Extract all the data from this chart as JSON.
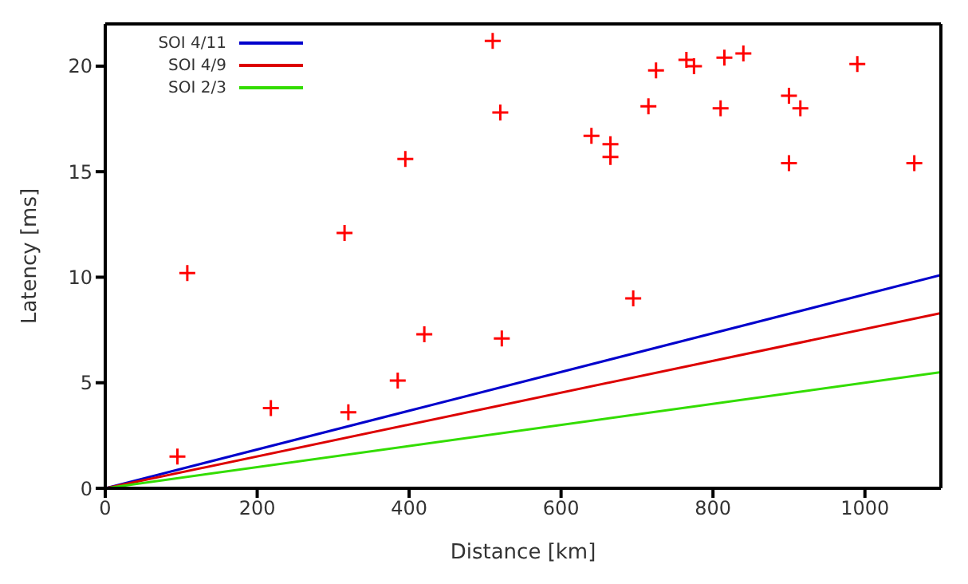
{
  "chart_data": {
    "type": "scatter",
    "xlabel": "Distance [km]",
    "ylabel": "Latency [ms]",
    "xlim": [
      0,
      1100
    ],
    "xticks": [
      0,
      200,
      400,
      600,
      800,
      1000
    ],
    "ylim": [
      0,
      22
    ],
    "yticks": [
      0,
      5,
      10,
      15,
      20
    ],
    "legend": "top left",
    "series": [
      {
        "marker": "cross",
        "color": "#ff0000",
        "x": [
          95,
          108,
          218,
          315,
          320,
          385,
          395,
          420,
          510,
          520,
          522,
          640,
          665,
          665,
          695,
          715,
          725,
          765,
          775,
          810,
          815,
          840,
          900,
          900,
          915,
          990,
          1065
        ],
        "values": [
          1.5,
          10.2,
          3.8,
          12.1,
          3.6,
          5.1,
          15.6,
          7.3,
          21.2,
          17.8,
          7.1,
          16.7,
          16.3,
          15.7,
          9.0,
          18.1,
          19.8,
          20.3,
          20.0,
          18.0,
          20.4,
          20.6,
          18.6,
          15.4,
          18.0,
          20.1,
          15.4
        ]
      },
      {
        "type": "line",
        "marker": "none",
        "name": "SOI 4/11",
        "color": "#0000cc",
        "x": [
          0,
          1100
        ],
        "values": [
          0,
          10.1
        ]
      },
      {
        "type": "line",
        "marker": "none",
        "name": "SOI 4/9",
        "color": "#dd0000",
        "x": [
          0,
          1100
        ],
        "values": [
          0,
          8.3
        ]
      },
      {
        "type": "line",
        "marker": "none",
        "name": "SOI 2/3",
        "color": "#33dd00",
        "x": [
          0,
          1100
        ],
        "values": [
          0,
          5.5
        ]
      }
    ]
  }
}
